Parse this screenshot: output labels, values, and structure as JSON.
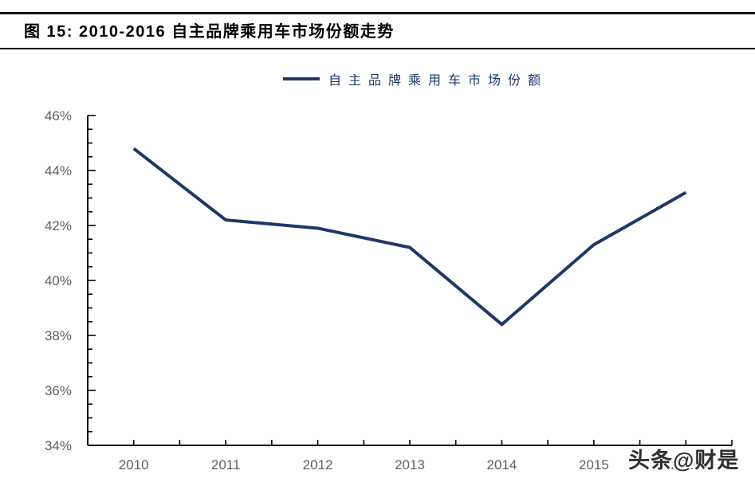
{
  "header": {
    "title": "图 15:  2010-2016 自主品牌乘用车市场份额走势"
  },
  "legend": {
    "label": "自主品牌乘用车市场份额"
  },
  "watermark": {
    "text": "头条@财是"
  },
  "colors": {
    "line": "#1F3864",
    "legend_text": "#1F3864",
    "axis_label": "#606060",
    "axis_line": "#000000",
    "title_text": "#000000"
  },
  "chart_data": {
    "type": "line",
    "title": "图 15: 2010-2016 自主品牌乘用车市场份额走势",
    "categories": [
      "2010",
      "2011",
      "2012",
      "2013",
      "2014",
      "2015",
      "2016"
    ],
    "series": [
      {
        "name": "自主品牌乘用车市场份额",
        "values": [
          44.8,
          42.2,
          41.9,
          41.2,
          38.4,
          41.3,
          43.2
        ]
      }
    ],
    "xlabel": "",
    "ylabel": "",
    "ylim": [
      34,
      46
    ],
    "ytick_step": 2,
    "ytick_minor_step": 0.5,
    "ytick_labels": [
      "34%",
      "36%",
      "38%",
      "40%",
      "42%",
      "44%",
      "46%"
    ],
    "unit": "%",
    "grid": false,
    "legend_position": "top",
    "tick_direction": "inside"
  }
}
